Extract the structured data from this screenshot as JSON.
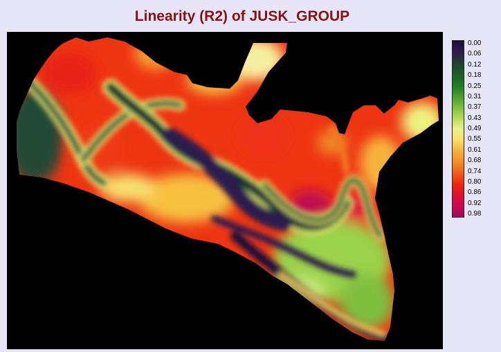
{
  "chart_data": {
    "type": "heatmap",
    "title": "Linearity (R2) of JUSK_GROUP",
    "background": "#000000",
    "title_color": "#8b1010",
    "colorscale": {
      "ticks": [
        "0.00",
        "0.06",
        "0.12",
        "0.18",
        "0.25",
        "0.31",
        "0.37",
        "0.43",
        "0.49",
        "0.55",
        "0.61",
        "0.68",
        "0.74",
        "0.80",
        "0.86",
        "0.92",
        "0.98"
      ],
      "stops": [
        {
          "value": 0.0,
          "color": "#1a0f3a"
        },
        {
          "value": 0.06,
          "color": "#2e1a4e"
        },
        {
          "value": 0.12,
          "color": "#243c34"
        },
        {
          "value": 0.18,
          "color": "#1b5c26"
        },
        {
          "value": 0.25,
          "color": "#1f7d1f"
        },
        {
          "value": 0.31,
          "color": "#4a9f2d"
        },
        {
          "value": 0.37,
          "color": "#7cbe3c"
        },
        {
          "value": 0.43,
          "color": "#b4dc5a"
        },
        {
          "value": 0.49,
          "color": "#e8f28a"
        },
        {
          "value": 0.55,
          "color": "#fbe06a"
        },
        {
          "value": 0.61,
          "color": "#f7b23c"
        },
        {
          "value": 0.68,
          "color": "#f48a26"
        },
        {
          "value": 0.74,
          "color": "#f25a18"
        },
        {
          "value": 0.8,
          "color": "#ec2410"
        },
        {
          "value": 0.86,
          "color": "#e01030"
        },
        {
          "value": 0.92,
          "color": "#c80a50"
        },
        {
          "value": 0.98,
          "color": "#a0085a"
        }
      ]
    }
  }
}
